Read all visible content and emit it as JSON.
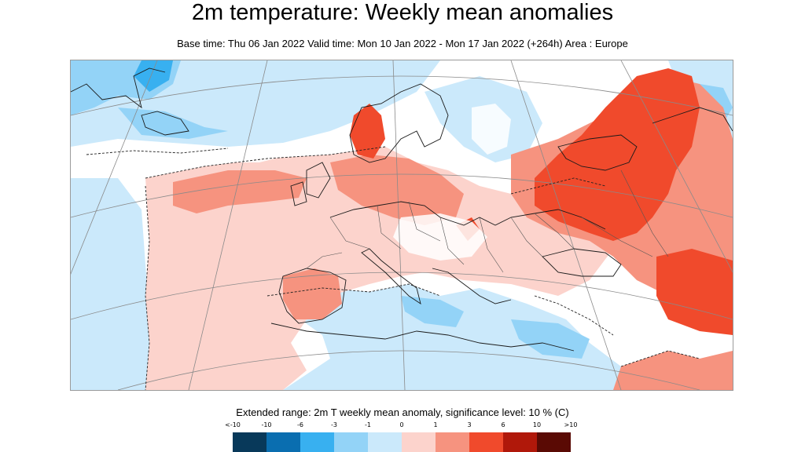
{
  "title": "2m temperature: Weekly mean anomalies",
  "subtitle": "Base time: Thu 06 Jan 2022 Valid time: Mon 10 Jan 2022 - Mon 17 Jan 2022 (+264h) Area : Europe",
  "map": {
    "variable": "2m temperature weekly mean anomaly",
    "area": "Europe",
    "warm_regions": [
      "Norway",
      "Western Russia",
      "Ukraine",
      "Kazakhstan",
      "Atlantic west of Iberia",
      "Iberia",
      "Northwest Africa"
    ],
    "cool_regions": [
      "Greenland",
      "Central Mediterranean",
      "Eastern Mediterranean",
      "North Africa",
      "Atlantic south of Iceland"
    ]
  },
  "legend": {
    "title": "Extended range: 2m T weekly mean anomaly, significance level: 10 % (C)",
    "labels": [
      "<-10",
      "-10",
      "-6",
      "-3",
      "-1",
      "0",
      "1",
      "3",
      "6",
      "10",
      ">10"
    ],
    "colors": [
      "#08395a",
      "#0a6eb0",
      "#38b0f0",
      "#93d3f7",
      "#cbe9fb",
      "#ffffff",
      "#fcd3cc",
      "#f6937f",
      "#f04a2c",
      "#b0180a",
      "#5a0a04"
    ]
  }
}
